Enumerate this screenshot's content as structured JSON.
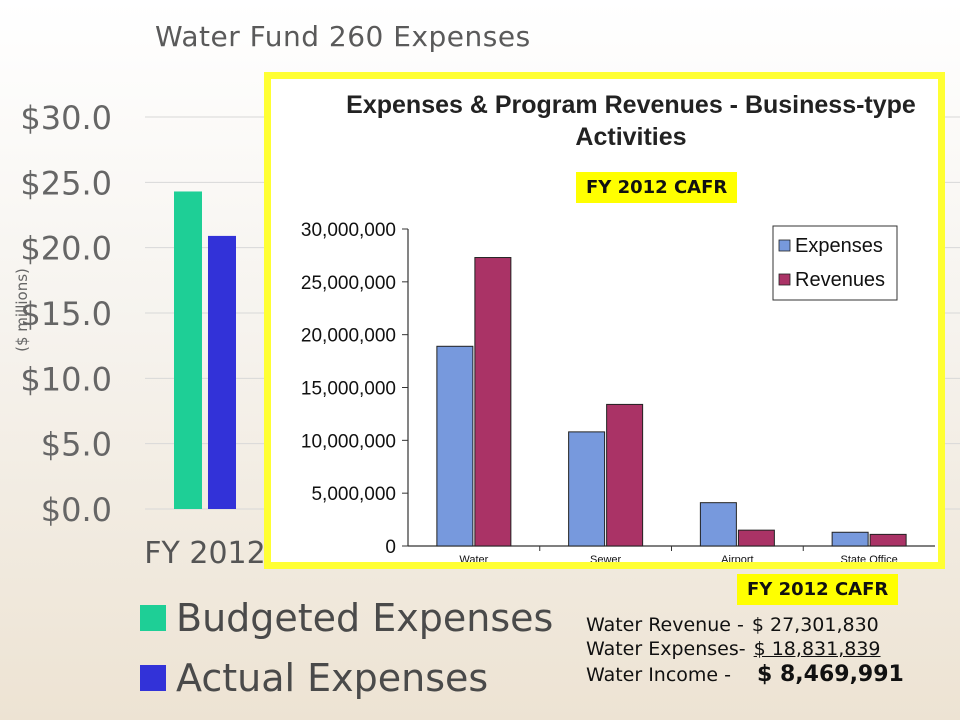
{
  "background_chart": {
    "title": "Water Fund 260 Expenses",
    "ylabel": "($ millions)",
    "y_ticks": [
      "$30.0",
      "$25.0",
      "$20.0",
      "$15.0",
      "$10.0",
      "$5.0",
      "$0.0"
    ],
    "category": "FY 2012",
    "legend": [
      {
        "label": "Budgeted Expenses",
        "color": "#1ecf96"
      },
      {
        "label": "Actual Expenses",
        "color": "#3232d8"
      }
    ]
  },
  "badges": {
    "top": "FY 2012 CAFR",
    "bottom": "FY 2012 CAFR"
  },
  "summary": {
    "revenue_label": "Water Revenue -",
    "revenue_value": "$ 27,301,830",
    "expenses_label": "Water Expenses-",
    "expenses_value": "$ 18,831,839",
    "income_label": "Water Income -",
    "income_value": "$ 8,469,991"
  },
  "colors": {
    "highlight_border": "#ffff33",
    "badge": "#ffff00"
  },
  "chart_data": [
    {
      "type": "bar",
      "title": "Water Fund 260 Expenses",
      "ylabel": "($ millions)",
      "categories": [
        "FY 2012"
      ],
      "series": [
        {
          "name": "Budgeted Expenses",
          "values": [
            24.3
          ],
          "color": "#1ecf96"
        },
        {
          "name": "Actual Expenses",
          "values": [
            20.9
          ],
          "color": "#3232d8"
        }
      ],
      "ylim": [
        0,
        30
      ],
      "grid": true
    },
    {
      "type": "bar",
      "title": "Expenses & Program Revenues - Business-type Activities",
      "categories": [
        "Water",
        "Sewer",
        "Airport",
        "State Office"
      ],
      "series": [
        {
          "name": "Expenses",
          "values": [
            18900000,
            10800000,
            4100000,
            1300000
          ],
          "color": "#7799dd"
        },
        {
          "name": "Revenues",
          "values": [
            27300000,
            13400000,
            1500000,
            1100000
          ],
          "color": "#aa3366"
        }
      ],
      "y_ticks": [
        "30,000,000",
        "25,000,000",
        "20,000,000",
        "15,000,000",
        "10,000,000",
        "5,000,000",
        "0"
      ],
      "ylim": [
        0,
        30000000
      ],
      "legend": "top-right",
      "grid": false
    }
  ]
}
